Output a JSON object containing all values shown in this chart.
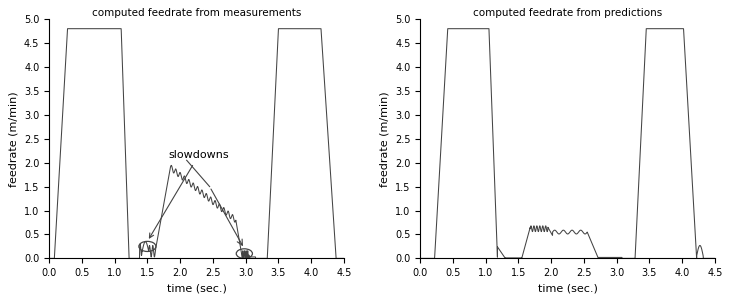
{
  "title_left": "computed feedrate from measurements",
  "title_right": "computed feedrate from predictions",
  "xlabel": "time (sec.)",
  "ylabel": "feedrate (m/min)",
  "xlim": [
    0,
    4.5
  ],
  "ylim": [
    0,
    5
  ],
  "yticks": [
    0,
    0.5,
    1,
    1.5,
    2,
    2.5,
    3,
    3.5,
    4,
    4.5,
    5
  ],
  "xticks": [
    0,
    0.5,
    1,
    1.5,
    2,
    2.5,
    3,
    3.5,
    4,
    4.5
  ],
  "line_color": "#444444",
  "annotation_text": "slowdowns",
  "background_color": "#ffffff",
  "figsize": [
    7.31,
    3.02
  ],
  "dpi": 100
}
